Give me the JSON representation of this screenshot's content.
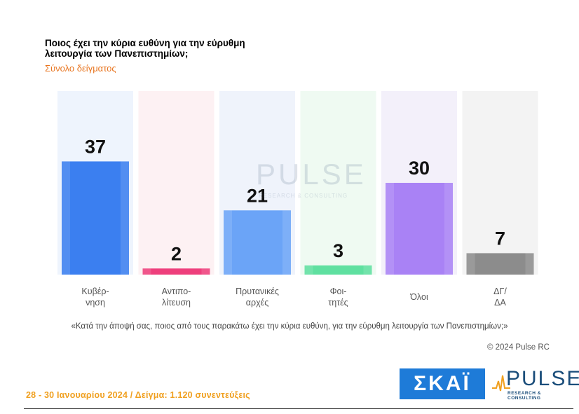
{
  "chart_data": {
    "type": "bar",
    "title_line1": "Ποιος έχει την κύρια ευθύνη για την εύρυθμη",
    "title_line2": "λειτουργία των Πανεπιστημίων;",
    "subtitle": "Σύνολο δείγματος",
    "categories": [
      {
        "line1": "Κυβέρ-",
        "line2": "νηση"
      },
      {
        "line1": "Αντιπο-",
        "line2": "λίτευση"
      },
      {
        "line1": "Πρυτανικές",
        "line2": "αρχές"
      },
      {
        "line1": "Φοι-",
        "line2": "τητές"
      },
      {
        "line1": "Όλοι",
        "line2": ""
      },
      {
        "line1": "ΔΓ/",
        "line2": "ΔΑ"
      }
    ],
    "values": [
      37,
      2,
      21,
      3,
      30,
      7
    ],
    "ylim": [
      0,
      60
    ],
    "colors": [
      "#3b7ff0",
      "#ee3f7c",
      "#6ba4f7",
      "#5fe0a0",
      "#a982f5",
      "#8c8c8c"
    ],
    "bg_colors": [
      "#eef4fd",
      "#fdf1f3",
      "#eff3fb",
      "#effaf2",
      "#f3f0fa",
      "#f3f3f3"
    ],
    "value_labels": [
      "37",
      "2",
      "21",
      "3",
      "30",
      "7"
    ]
  },
  "note": "«Κατά την άποψή σας, ποιος από τους παρακάτω έχει την κύρια ευθύνη, για την εύρυθμη λειτουργία των Πανεπιστημίων;»",
  "copyright": "© 2024 Pulse RC",
  "date_sample": "28 - 30 Ιανουαρίου 2024 / Δείγμα: 1.120 συνεντεύξεις",
  "logos": {
    "skai": "ΣΚΑΪ",
    "pulse": "PULSE",
    "pulse_sub": "RESEARCH & CONSULTING"
  }
}
